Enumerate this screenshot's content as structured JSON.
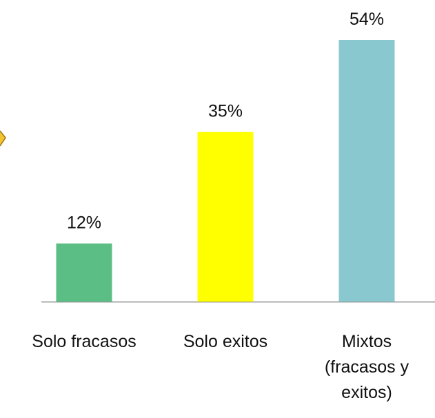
{
  "chart_data": {
    "type": "bar",
    "categories": [
      "Solo fracasos",
      "Solo exitos",
      "Mixtos (fracasos y exitos)"
    ],
    "values": [
      12,
      35,
      54
    ],
    "value_labels": [
      "12%",
      "35%",
      "54%"
    ],
    "colors": [
      "#5bbf85",
      "#ffff00",
      "#8ac8cf"
    ]
  }
}
